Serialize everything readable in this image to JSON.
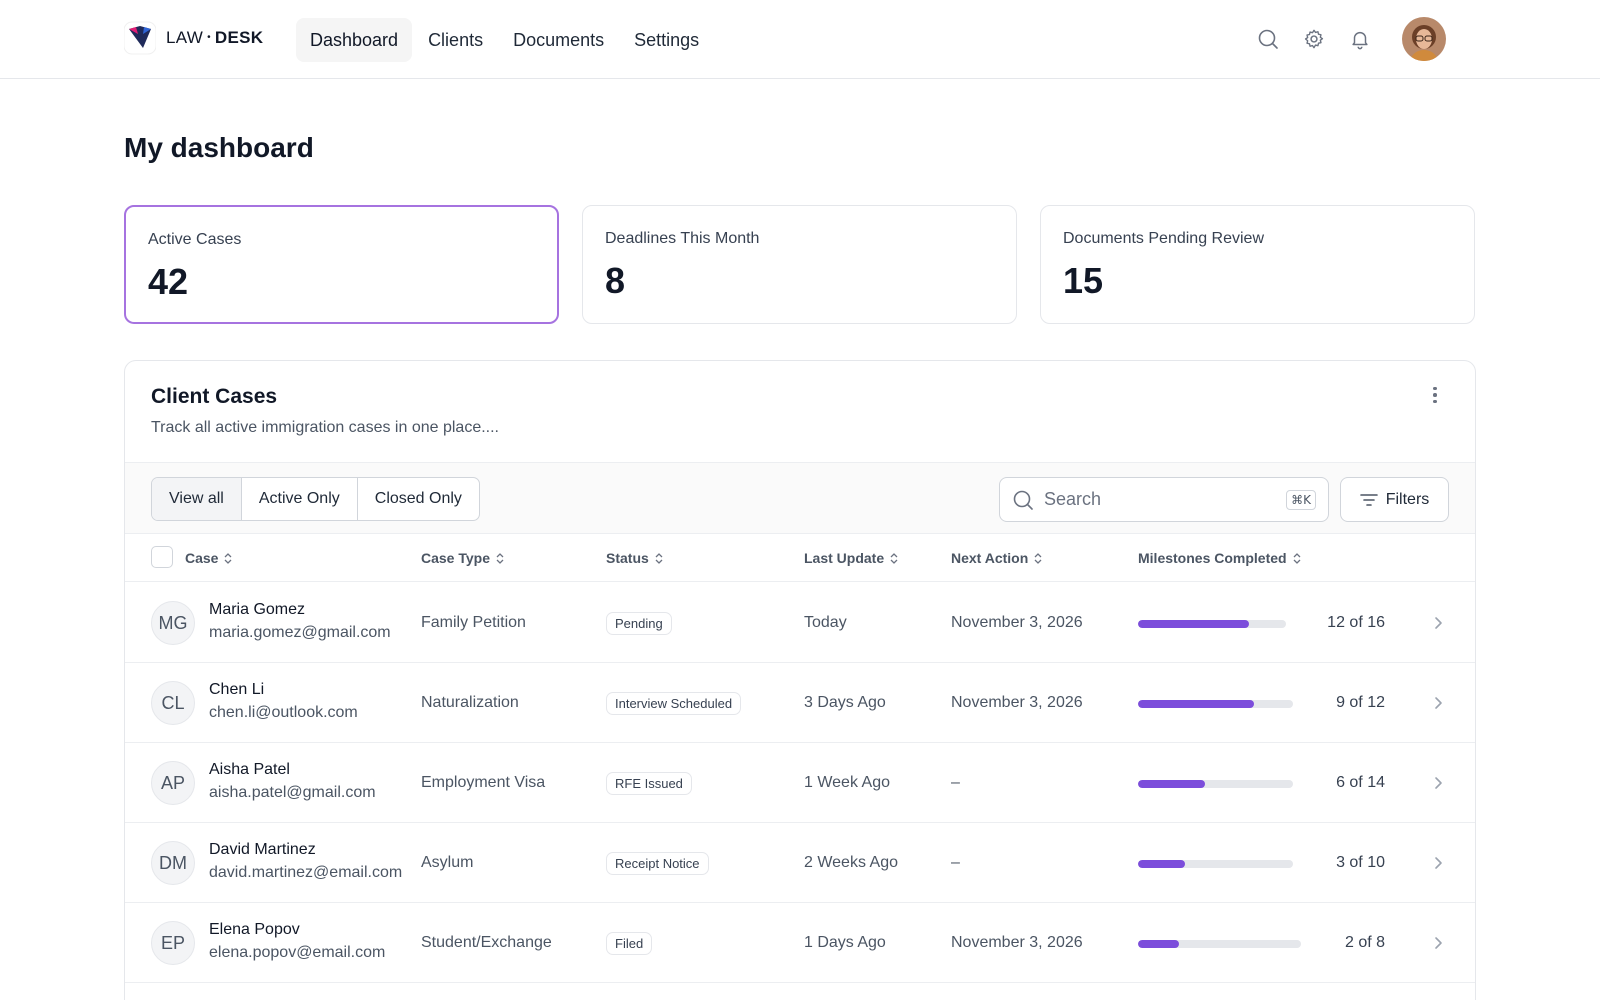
{
  "brand": {
    "law": "LAW",
    "dot": "•",
    "desk": "DESK"
  },
  "nav": [
    {
      "label": "Dashboard",
      "active": true
    },
    {
      "label": "Clients",
      "active": false
    },
    {
      "label": "Documents",
      "active": false
    },
    {
      "label": "Settings",
      "active": false
    }
  ],
  "header_icons": [
    "search-icon",
    "gear-icon",
    "bell-icon"
  ],
  "page_title": "My dashboard",
  "stats": [
    {
      "label": "Active Cases",
      "value": "42"
    },
    {
      "label": "Deadlines This Month",
      "value": "8"
    },
    {
      "label": "Documents Pending Review",
      "value": "15"
    }
  ],
  "cases_card": {
    "title": "Client Cases",
    "subtitle": "Track all active immigration cases in one place....",
    "view_tabs": [
      "View all",
      "Active Only",
      "Closed Only"
    ],
    "search_placeholder": "Search",
    "search_shortcut": "⌘K",
    "filters_label": "Filters",
    "columns": [
      "Case",
      "Case Type",
      "Status",
      "Last Update",
      "Next Action",
      "Milestones Completed"
    ],
    "rows": [
      {
        "initials": "MG",
        "name": "Maria Gomez",
        "email": "maria.gomez@gmail.com",
        "case_type": "Family Petition",
        "status": "Pending",
        "last_update": "Today",
        "next_action": "November 3, 2026",
        "milestones_text": "12 of 16",
        "progress": 0.75
      },
      {
        "initials": "CL",
        "name": "Chen Li",
        "email": "chen.li@outlook.com",
        "case_type": "Naturalization",
        "status": "Interview Scheduled",
        "last_update": "3 Days Ago",
        "next_action": "November 3, 2026",
        "milestones_text": "9 of 12",
        "progress": 0.75
      },
      {
        "initials": "AP",
        "name": "Aisha Patel",
        "email": "aisha.patel@gmail.com",
        "case_type": "Employment Visa",
        "status": "RFE Issued",
        "last_update": "1 Week Ago",
        "next_action": "–",
        "milestones_text": "6 of 14",
        "progress": 0.43
      },
      {
        "initials": "DM",
        "name": "David Martinez",
        "email": "david.martinez@email.com",
        "case_type": "Asylum",
        "status": "Receipt Notice",
        "last_update": "2 Weeks Ago",
        "next_action": "–",
        "milestones_text": "3 of 10",
        "progress": 0.3
      },
      {
        "initials": "EP",
        "name": "Elena Popov",
        "email": "elena.popov@email.com",
        "case_type": "Student/Exchange",
        "status": "Filed",
        "last_update": "1 Days Ago",
        "next_action": "November 3, 2026",
        "milestones_text": "2 of 8",
        "progress": 0.25
      }
    ]
  },
  "colors": {
    "accent": "#7c4ddb",
    "active_card_border": "#a673e0"
  }
}
